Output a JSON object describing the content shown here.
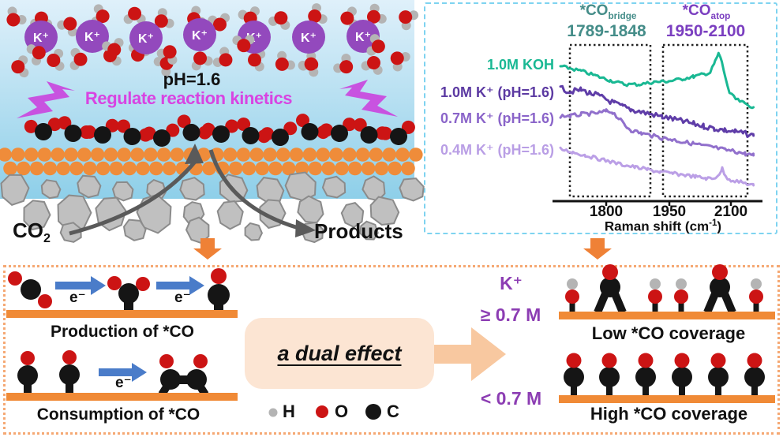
{
  "colors": {
    "potassium": "#9349bd",
    "oxygen": "#cc1414",
    "hydrogen": "#b4b4b4",
    "carbon": "#151515",
    "catalyst": "#ef8c3a",
    "catalyst_bar": "#f08a36",
    "rock_fill": "#c0c0c0",
    "rock_stroke": "#8b8b8b",
    "sky_top": "#dff0fa",
    "sky_bottom": "#8ecfe9",
    "lightning": "#c853e0",
    "magenta_text": "#d844e2",
    "blue_arrow": "#4a7cc9",
    "dark_arrow": "#5a5a5a",
    "orange_arrow": "#ef8136",
    "peach_arrow": "#f8c8a0",
    "purple_text": "#8c3db3",
    "teal_text": "#19b893",
    "bridge_label_teal": "#458d89",
    "atop_label_purple": "#7b3fc0"
  },
  "scene": {
    "ph_label": "pH=1.6",
    "kinetics_label": "Regulate reaction kinetics",
    "kplus_label": "K⁺",
    "co2_main": "CO",
    "co2_sub": "2",
    "products_label": "Products"
  },
  "mechanism": {
    "electron_label": "e⁻",
    "production_label": "Production of *CO",
    "consumption_label": "Consumption of *CO",
    "dual_effect_label": "a dual effect",
    "legend": [
      {
        "symbol": "H",
        "color": "#b4b4b4"
      },
      {
        "symbol": "O",
        "color": "#cc1414"
      },
      {
        "symbol": "C",
        "color": "#151515"
      }
    ]
  },
  "outcome": {
    "kplus_title": "K⁺",
    "high_k": "≥ 0.7 M",
    "low_k": "< 0.7 M",
    "low_coverage_label": "Low *CO coverage",
    "high_coverage_label": "High *CO coverage"
  },
  "raman": {
    "co_bridge_main": "*CO",
    "co_bridge_sub": "bridge",
    "bridge_range": "1789-1848",
    "co_atop_main": "*CO",
    "co_atop_sub": "atop",
    "atop_range": "1950-2100",
    "xlabel_main": "Raman shift (cm",
    "xlabel_sup": "-1",
    "xlabel_close": ")",
    "ticks": [
      "1800",
      "1950",
      "2100"
    ]
  },
  "chart_data": {
    "type": "line",
    "xlabel": "Raman shift (cm⁻¹)",
    "ylabel": "",
    "y_unit": "a.u. (relative stacked intensity)",
    "x_ticks": [
      1800,
      1950,
      2100
    ],
    "x_range": [
      1690,
      2155
    ],
    "grid": false,
    "legend_position": "left",
    "regions": [
      {
        "label": "*CO bridge",
        "range_cm": "1789-1848"
      },
      {
        "label": "*CO atop",
        "range_cm": "1950-2100"
      }
    ],
    "series": [
      {
        "name": "1.0M KOH",
        "color": "#19b893",
        "noise": 2,
        "points": [
          [
            1690,
            166
          ],
          [
            1740,
            160
          ],
          [
            1775,
            154
          ],
          [
            1810,
            148
          ],
          [
            1845,
            143
          ],
          [
            1880,
            143
          ],
          [
            1915,
            146
          ],
          [
            1950,
            147
          ],
          [
            1985,
            150
          ],
          [
            2010,
            153
          ],
          [
            2035,
            156
          ],
          [
            2050,
            158
          ],
          [
            2062,
            172
          ],
          [
            2070,
            182
          ],
          [
            2078,
            172
          ],
          [
            2087,
            150
          ],
          [
            2097,
            132
          ],
          [
            2112,
            124
          ],
          [
            2132,
            119
          ],
          [
            2154,
            114
          ]
        ]
      },
      {
        "name": "1.0M K⁺ (pH=1.6)",
        "color": "#5f3da8",
        "noise": 3.5,
        "points": [
          [
            1690,
            138
          ],
          [
            1715,
            134
          ],
          [
            1740,
            136
          ],
          [
            1760,
            132
          ],
          [
            1780,
            129
          ],
          [
            1800,
            124
          ],
          [
            1820,
            119
          ],
          [
            1840,
            115
          ],
          [
            1860,
            111
          ],
          [
            1885,
            108
          ],
          [
            1910,
            105
          ],
          [
            1935,
            102
          ],
          [
            1960,
            99
          ],
          [
            1985,
            96
          ],
          [
            2010,
            93
          ],
          [
            2035,
            90
          ],
          [
            2060,
            87
          ],
          [
            2085,
            85
          ],
          [
            2110,
            83
          ],
          [
            2130,
            81
          ],
          [
            2154,
            78
          ]
        ]
      },
      {
        "name": "0.7M K⁺ (pH=1.6)",
        "color": "#9170cc",
        "noise": 2.5,
        "points": [
          [
            1690,
            103
          ],
          [
            1715,
            103
          ],
          [
            1740,
            105
          ],
          [
            1765,
            106
          ],
          [
            1785,
            107
          ],
          [
            1800,
            109
          ],
          [
            1815,
            108
          ],
          [
            1830,
            100
          ],
          [
            1845,
            91
          ],
          [
            1860,
            85
          ],
          [
            1885,
            81
          ],
          [
            1910,
            78
          ],
          [
            1935,
            75
          ],
          [
            1960,
            73
          ],
          [
            1985,
            70
          ],
          [
            2010,
            68
          ],
          [
            2035,
            65
          ],
          [
            2060,
            63
          ],
          [
            2085,
            60
          ],
          [
            2110,
            58
          ],
          [
            2135,
            55
          ],
          [
            2154,
            53
          ]
        ]
      },
      {
        "name": "0.4M K⁺ (pH=1.6)",
        "color": "#bb9fe6",
        "noise": 2.2,
        "points": [
          [
            1690,
            61
          ],
          [
            1720,
            57
          ],
          [
            1750,
            53
          ],
          [
            1780,
            49
          ],
          [
            1810,
            45
          ],
          [
            1840,
            41
          ],
          [
            1870,
            38
          ],
          [
            1900,
            35
          ],
          [
            1930,
            32
          ],
          [
            1960,
            30
          ],
          [
            1990,
            28
          ],
          [
            2015,
            26
          ],
          [
            2040,
            24
          ],
          [
            2058,
            23
          ],
          [
            2072,
            30
          ],
          [
            2079,
            36
          ],
          [
            2087,
            26
          ],
          [
            2100,
            22
          ],
          [
            2125,
            19
          ],
          [
            2154,
            15
          ]
        ]
      }
    ]
  }
}
